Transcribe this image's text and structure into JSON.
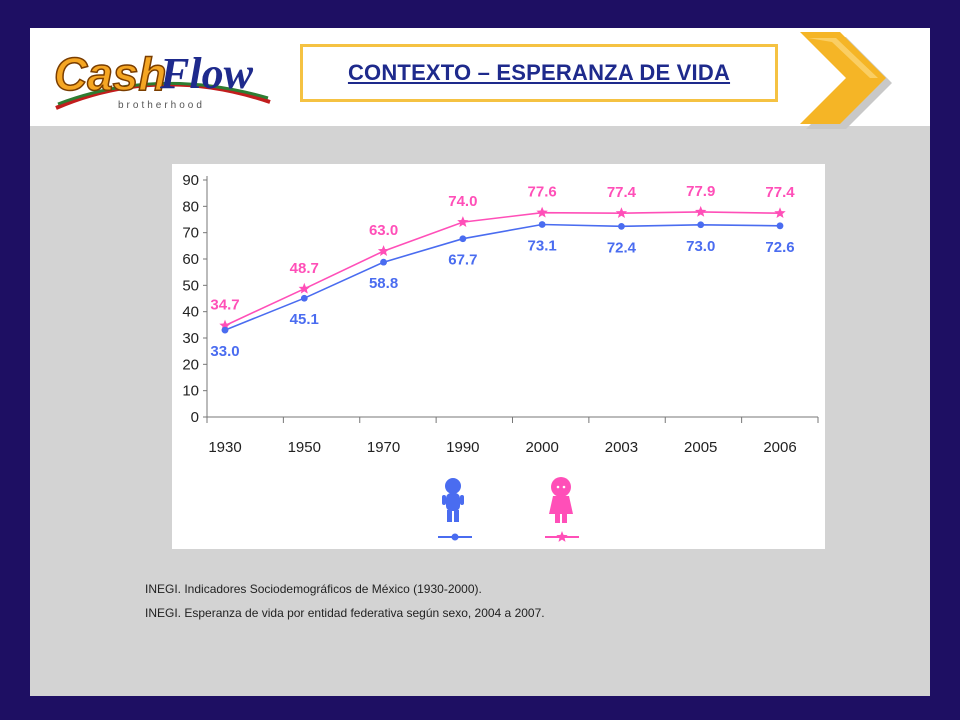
{
  "header": {
    "logo_text": "CashFlow",
    "logo_subtext": "brotherhood",
    "title": "CONTEXTO – ESPERANZA DE VIDA"
  },
  "colors": {
    "background": "#1e0f63",
    "title": "#1e2a8c",
    "title_border": "#f5c242",
    "male": "#4a6cf0",
    "female": "#ff4fb8",
    "chevron": "#f5b526"
  },
  "sources": [
    "INEGI. Indicadores Sociodemográficos de México (1930-2000).",
    "INEGI. Esperanza de vida por entidad federativa según sexo, 2004 a 2007."
  ],
  "legend": {
    "male_icon": "boy-icon",
    "female_icon": "girl-icon"
  },
  "chart_data": {
    "type": "line",
    "categories": [
      "1930",
      "1950",
      "1970",
      "1990",
      "2000",
      "2003",
      "2005",
      "2006"
    ],
    "ylim": [
      0,
      90
    ],
    "yticks": [
      0,
      10,
      20,
      30,
      40,
      50,
      60,
      70,
      80,
      90
    ],
    "grid": false,
    "series": [
      {
        "key": "female",
        "marker": "star",
        "color": "#ff4fb8",
        "values": [
          34.7,
          48.7,
          63.0,
          74.0,
          77.6,
          77.4,
          77.9,
          77.4
        ],
        "labels": [
          "34.7",
          "48.7",
          "63.0",
          "74.0",
          "77.6",
          "77.4",
          "77.9",
          "77.4"
        ]
      },
      {
        "key": "male",
        "marker": "circle",
        "color": "#4a6cf0",
        "values": [
          33.0,
          45.1,
          58.8,
          67.7,
          73.1,
          72.4,
          73.0,
          72.6
        ],
        "labels": [
          "33.0",
          "45.1",
          "58.8",
          "67.7",
          "73.1",
          "72.4",
          "73.0",
          "72.6"
        ]
      }
    ]
  }
}
